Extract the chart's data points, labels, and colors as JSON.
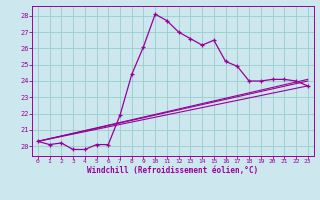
{
  "xlabel": "Windchill (Refroidissement éolien,°C)",
  "bg_color": "#cce8ee",
  "line_color": "#990099",
  "grid_color": "#99cccc",
  "xlim": [
    -0.5,
    23.5
  ],
  "ylim": [
    19.4,
    28.6
  ],
  "yticks": [
    20,
    21,
    22,
    23,
    24,
    25,
    26,
    27,
    28
  ],
  "xticks": [
    0,
    1,
    2,
    3,
    4,
    5,
    6,
    7,
    8,
    9,
    10,
    11,
    12,
    13,
    14,
    15,
    16,
    17,
    18,
    19,
    20,
    21,
    22,
    23
  ],
  "series1_x": [
    0,
    1,
    2,
    3,
    4,
    5,
    6,
    7,
    8,
    9,
    10,
    11,
    12,
    13,
    14,
    15,
    16,
    17,
    18,
    19,
    20,
    21,
    22,
    23
  ],
  "series1_y": [
    20.3,
    20.1,
    20.2,
    19.8,
    19.8,
    20.1,
    20.1,
    21.9,
    24.4,
    26.1,
    28.1,
    27.7,
    27.0,
    26.6,
    26.2,
    26.5,
    25.2,
    24.9,
    24.0,
    24.0,
    24.1,
    24.1,
    24.0,
    23.7
  ],
  "series2_x": [
    0,
    23
  ],
  "series2_y": [
    20.3,
    23.7
  ],
  "series3_x": [
    0,
    23
  ],
  "series3_y": [
    20.3,
    24.1
  ],
  "series4_x": [
    0,
    23
  ],
  "series4_y": [
    20.3,
    24.0
  ]
}
